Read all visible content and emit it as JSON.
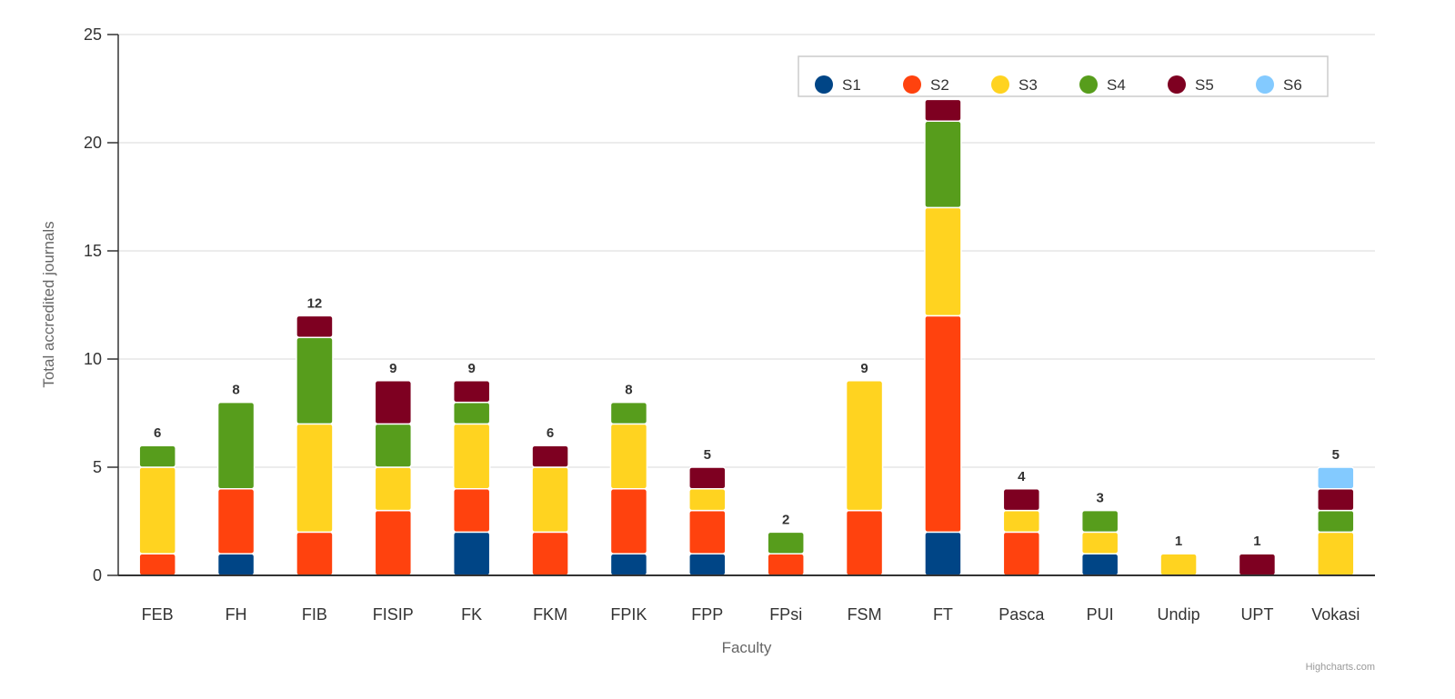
{
  "chart_data": {
    "type": "bar",
    "stacked": true,
    "title": "",
    "xlabel": "Faculty",
    "ylabel": "Total accredited journals",
    "ylim": [
      0,
      25
    ],
    "yticks": [
      0,
      5,
      10,
      15,
      20,
      25
    ],
    "grid": true,
    "legend_position": "top-right",
    "categories": [
      "FEB",
      "FH",
      "FIB",
      "FISIP",
      "FK",
      "FKM",
      "FPIK",
      "FPP",
      "FPsi",
      "FSM",
      "FT",
      "Pasca",
      "PUI",
      "Undip",
      "UPT",
      "Vokasi"
    ],
    "series": [
      {
        "name": "S1",
        "color": "#004586",
        "values": [
          0,
          1,
          0,
          0,
          2,
          0,
          1,
          1,
          0,
          0,
          2,
          0,
          1,
          0,
          0,
          0
        ]
      },
      {
        "name": "S2",
        "color": "#ff420e",
        "values": [
          1,
          3,
          2,
          3,
          2,
          2,
          3,
          2,
          1,
          3,
          10,
          2,
          0,
          0,
          0,
          0
        ]
      },
      {
        "name": "S3",
        "color": "#ffd320",
        "values": [
          4,
          0,
          5,
          2,
          3,
          3,
          3,
          1,
          0,
          6,
          5,
          1,
          1,
          1,
          0,
          2
        ]
      },
      {
        "name": "S4",
        "color": "#579d1c",
        "values": [
          1,
          4,
          4,
          2,
          1,
          0,
          1,
          0,
          1,
          0,
          4,
          0,
          1,
          0,
          0,
          1
        ]
      },
      {
        "name": "S5",
        "color": "#7e0021",
        "values": [
          0,
          0,
          1,
          2,
          1,
          1,
          0,
          1,
          0,
          0,
          1,
          1,
          0,
          0,
          1,
          1
        ]
      },
      {
        "name": "S6",
        "color": "#83caff",
        "values": [
          0,
          0,
          0,
          0,
          0,
          0,
          0,
          0,
          0,
          0,
          0,
          0,
          0,
          0,
          0,
          1
        ]
      }
    ],
    "totals": [
      6,
      8,
      12,
      9,
      9,
      6,
      8,
      5,
      2,
      9,
      null,
      4,
      3,
      1,
      1,
      5
    ],
    "credit": "Highcharts.com"
  }
}
